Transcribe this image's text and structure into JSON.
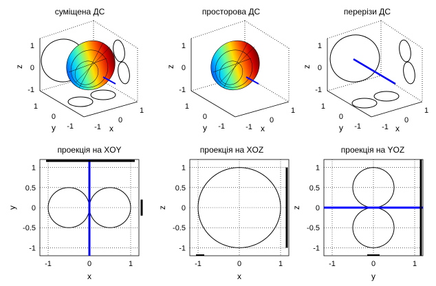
{
  "figure": {
    "colors": {
      "curve": "#000000",
      "axis_line": "#0000ff",
      "grid": "#000000",
      "surface_colormap": "jet"
    }
  },
  "chart_data": [
    {
      "type": "surface3d",
      "title": "суміщена ДС",
      "xlabel": "x",
      "ylabel": "y",
      "zlabel": "z",
      "x_ticks": [
        "-1",
        "0",
        "1"
      ],
      "y_ticks": [
        "-1",
        "0",
        "1"
      ],
      "z_ticks": [
        "-1",
        "0",
        "1"
      ],
      "shows_surface": true,
      "shows_section_curves": true,
      "grid": true
    },
    {
      "type": "surface3d",
      "title": "просторова ДС",
      "xlabel": "x",
      "ylabel": "y",
      "zlabel": "z",
      "x_ticks": [
        "-1",
        "0",
        "1"
      ],
      "y_ticks": [
        "-1",
        "0",
        "1"
      ],
      "z_ticks": [
        "-1",
        "0",
        "1"
      ],
      "shows_surface": true,
      "shows_section_curves": false,
      "grid": true
    },
    {
      "type": "line3d",
      "title": "перерізи ДС",
      "xlabel": "x",
      "ylabel": "y",
      "zlabel": "z",
      "x_ticks": [
        "-1",
        "0",
        "1"
      ],
      "y_ticks": [
        "-1",
        "0",
        "1"
      ],
      "z_ticks": [
        "-1",
        "0",
        "1"
      ],
      "shows_surface": false,
      "shows_section_curves": true,
      "grid": true
    },
    {
      "type": "line",
      "title": "проекція на XOY",
      "xlabel": "x",
      "ylabel": "y",
      "xlim": [
        -1.2,
        1.2
      ],
      "ylim": [
        -1.2,
        1.2
      ],
      "x_ticks": [
        "-1",
        "0",
        "1"
      ],
      "y_ticks": [
        "1",
        "0.5",
        "0",
        "-0.5",
        "-1"
      ],
      "grid": true,
      "curve": "figure-eight |x| lobes along x (r = |cos φ|)",
      "axis_line": "x = 0"
    },
    {
      "type": "line",
      "title": "проекція на XOZ",
      "xlabel": "x",
      "ylabel": "z",
      "xlim": [
        -1.2,
        1.2
      ],
      "ylim": [
        -1.2,
        1.2
      ],
      "x_ticks": [
        "-1",
        "0",
        "1"
      ],
      "y_ticks": [
        "1",
        "0.5",
        "0",
        "-0.5",
        "-1"
      ],
      "grid": true,
      "curve": "unit circle",
      "axis_line": "none"
    },
    {
      "type": "line",
      "title": "проекція на YOZ",
      "xlabel": "y",
      "ylabel": "z",
      "xlim": [
        -1.2,
        1.2
      ],
      "ylim": [
        -1.2,
        1.2
      ],
      "x_ticks": [
        "-1",
        "0",
        "1"
      ],
      "y_ticks": [
        "1",
        "0.5",
        "0",
        "-0.5",
        "-1"
      ],
      "grid": true,
      "curve": "figure-eight lobes along z (r = |cos θ|)",
      "axis_line": "z = 0"
    }
  ]
}
